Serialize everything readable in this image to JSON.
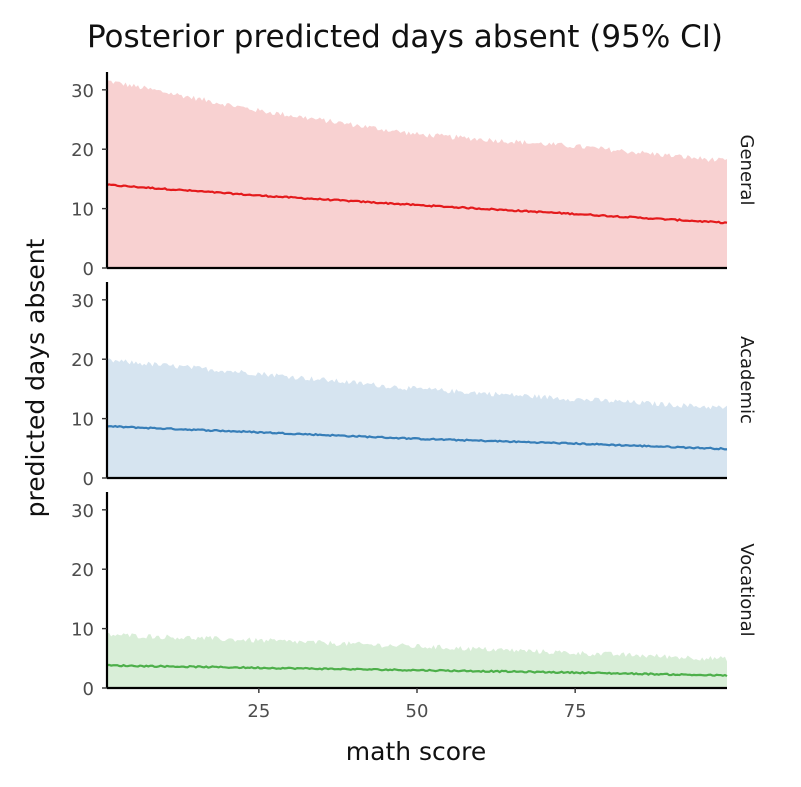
{
  "chart_data": {
    "type": "area",
    "title": "Posterior predicted days absent (95% CI)",
    "xlabel": "math score",
    "ylabel": "predicted days absent",
    "xlim": [
      1,
      99
    ],
    "ylim": [
      0,
      33
    ],
    "x_ticks": [
      25,
      50,
      75
    ],
    "y_ticks": [
      0,
      10,
      20,
      30
    ],
    "grid": false,
    "legend": "none",
    "facets": [
      {
        "name": "General",
        "color": "#e41a1c",
        "band_color": "#f8d1d1",
        "x": [
          1,
          25,
          50,
          75,
          99
        ],
        "median": [
          14.0,
          12.2,
          10.6,
          9.1,
          7.6
        ],
        "upper": [
          31.5,
          26.5,
          22.5,
          20.5,
          18.0
        ],
        "lower": [
          0,
          0,
          0,
          0,
          0
        ]
      },
      {
        "name": "Academic",
        "color": "#377eb8",
        "band_color": "#d6e4f0",
        "x": [
          1,
          25,
          50,
          75,
          99
        ],
        "median": [
          8.7,
          7.7,
          6.6,
          5.8,
          4.9
        ],
        "upper": [
          19.8,
          17.6,
          15.0,
          13.3,
          11.8
        ],
        "lower": [
          0,
          0,
          0,
          0,
          0
        ]
      },
      {
        "name": "Vocational",
        "color": "#4daf4a",
        "band_color": "#d9eed8",
        "x": [
          1,
          25,
          50,
          75,
          99
        ],
        "median": [
          3.8,
          3.4,
          3.0,
          2.6,
          2.1
        ],
        "upper": [
          9.0,
          8.0,
          7.0,
          5.9,
          4.9
        ],
        "lower": [
          0,
          0,
          0,
          0,
          0
        ]
      }
    ]
  }
}
